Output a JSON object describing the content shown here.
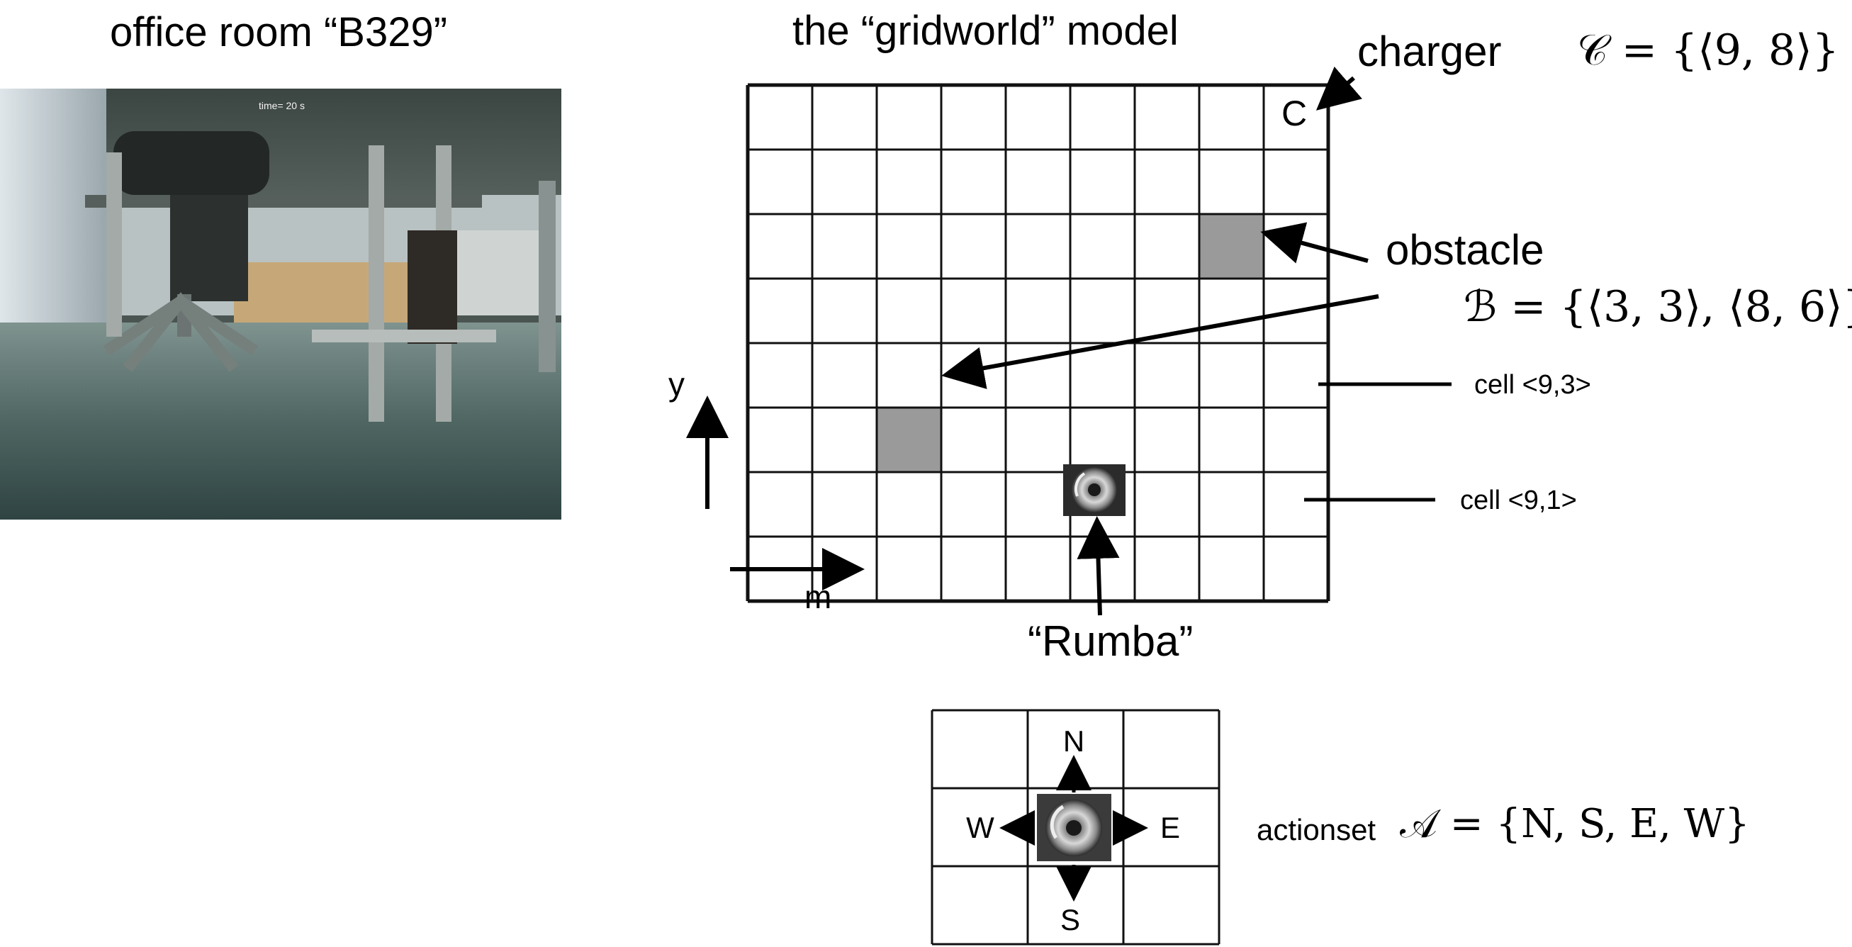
{
  "titles": {
    "office_room": "office room “B329”",
    "gridworld": "the “gridworld” model"
  },
  "photo": {
    "timestamp": "time= 20 s"
  },
  "grid": {
    "columns": 9,
    "rows": 8,
    "charger_cell_letter": "C",
    "obstacle_cells": [
      [
        3,
        3
      ],
      [
        8,
        6
      ]
    ],
    "robot_cell": [
      6,
      1
    ]
  },
  "labels": {
    "charger": "charger",
    "charger_set": "𝒞 = {⟨9, 8⟩}",
    "obstacle": "obstacle",
    "obstacle_set": "ℬ = {⟨3, 3⟩, ⟨8, 6⟩}",
    "cell_9_3": "cell <9,3>",
    "cell_9_1": "cell <9,1>",
    "y_axis": "y",
    "x_axis": "m",
    "robot": "“Rumba”"
  },
  "actions": {
    "N": "N",
    "S": "S",
    "E": "E",
    "W": "W",
    "actionset_label": "actionset",
    "actionset_set": "𝒜 = {N, S, E, W}"
  },
  "colors": {
    "obstacle": "#9a9a9a",
    "grid_line": "#111111"
  }
}
